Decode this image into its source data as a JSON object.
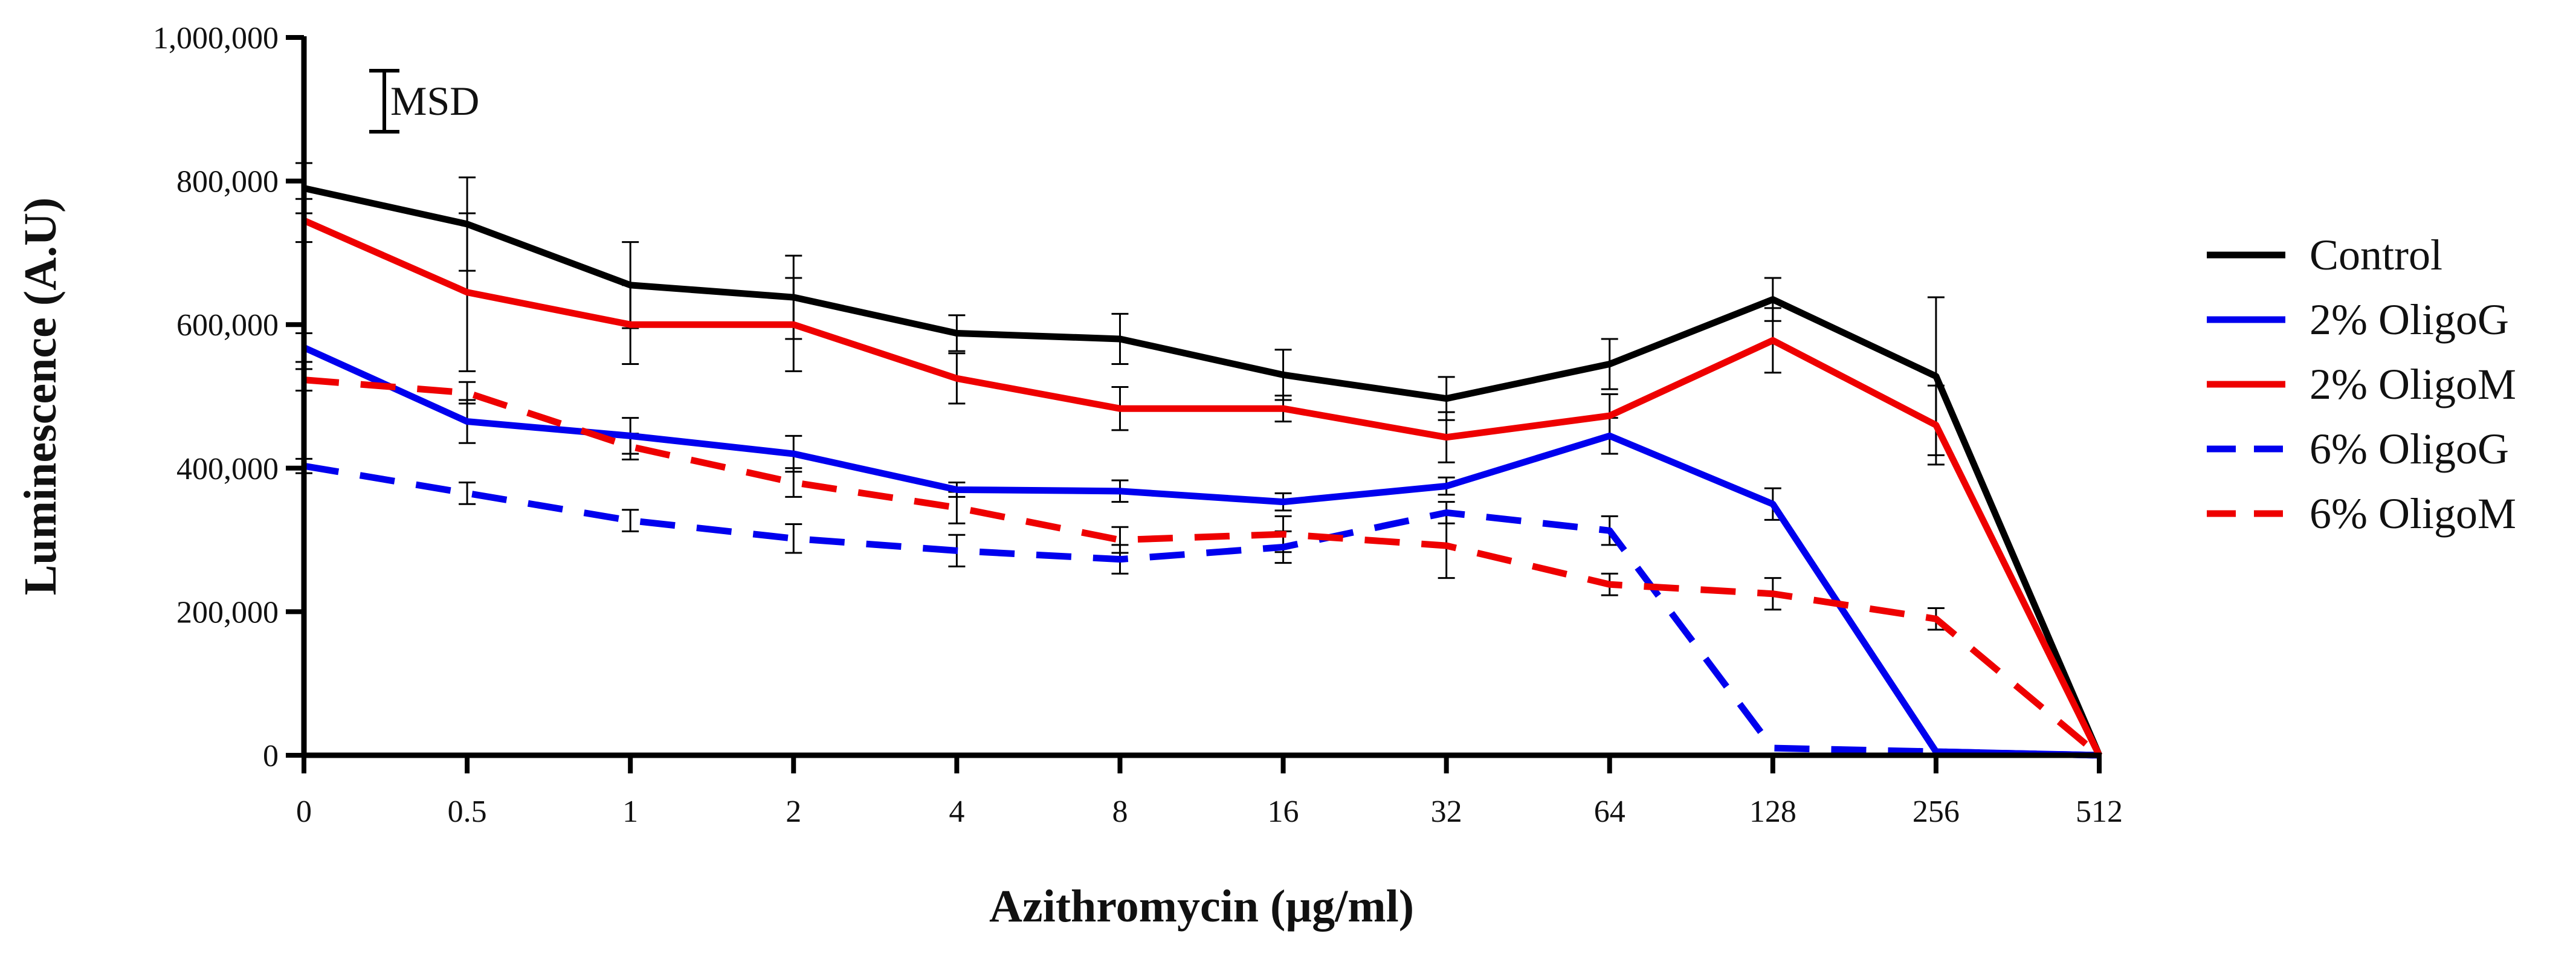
{
  "chart_data": {
    "type": "line",
    "title": "",
    "xlabel": "Azithromycin (µg/ml)",
    "ylabel": "Luminescence (A.U)",
    "categories": [
      "0",
      "0.5",
      "1",
      "2",
      "4",
      "8",
      "16",
      "32",
      "64",
      "128",
      "256",
      "512"
    ],
    "y_ticks": [
      0,
      200000,
      400000,
      600000,
      800000,
      1000000
    ],
    "y_tick_labels": [
      "0",
      "200,000",
      "400,000",
      "600,000",
      "800,000",
      "1,000,000"
    ],
    "ylim": [
      0,
      1000000
    ],
    "grid": false,
    "legend_position": "right",
    "annotation": "MSD",
    "series": [
      {
        "name": "Control",
        "color": "#000000",
        "dash": "solid",
        "values": [
          790000,
          740000,
          655000,
          638000,
          588000,
          580000,
          530000,
          497000,
          545000,
          635000,
          528000,
          0
        ],
        "errors": [
          35000,
          65000,
          60000,
          58000,
          25000,
          35000,
          35000,
          30000,
          35000,
          30000,
          110000,
          0
        ]
      },
      {
        "name": "2% OligoG",
        "color": "#0000ee",
        "dash": "solid",
        "values": [
          568000,
          465000,
          445000,
          420000,
          370000,
          368000,
          353000,
          375000,
          445000,
          350000,
          5000,
          0
        ],
        "errors": [
          20000,
          30000,
          25000,
          25000,
          10000,
          15000,
          12000,
          12000,
          25000,
          22000,
          0,
          0
        ]
      },
      {
        "name": "2% OligoM",
        "color": "#ee0000",
        "dash": "solid",
        "values": [
          745000,
          645000,
          600000,
          600000,
          525000,
          483000,
          483000,
          443000,
          473000,
          578000,
          460000,
          0
        ],
        "errors": [
          30000,
          110000,
          55000,
          65000,
          35000,
          30000,
          18000,
          35000,
          30000,
          45000,
          55000,
          0
        ]
      },
      {
        "name": "6% OligoG",
        "color": "#0000ee",
        "dash": "dashed",
        "values": [
          403000,
          365000,
          327000,
          302000,
          285000,
          273000,
          290000,
          338000,
          313000,
          10000,
          5000,
          0
        ],
        "errors": [
          10000,
          15000,
          15000,
          20000,
          22000,
          20000,
          22000,
          15000,
          20000,
          0,
          0,
          0
        ]
      },
      {
        "name": "6% OligoM",
        "color": "#ee0000",
        "dash": "dashed",
        "values": [
          523000,
          505000,
          430000,
          380000,
          345000,
          300000,
          308000,
          292000,
          238000,
          225000,
          190000,
          0
        ],
        "errors": [
          15000,
          15000,
          18000,
          20000,
          22000,
          18000,
          25000,
          45000,
          15000,
          22000,
          15000,
          0
        ]
      }
    ]
  }
}
